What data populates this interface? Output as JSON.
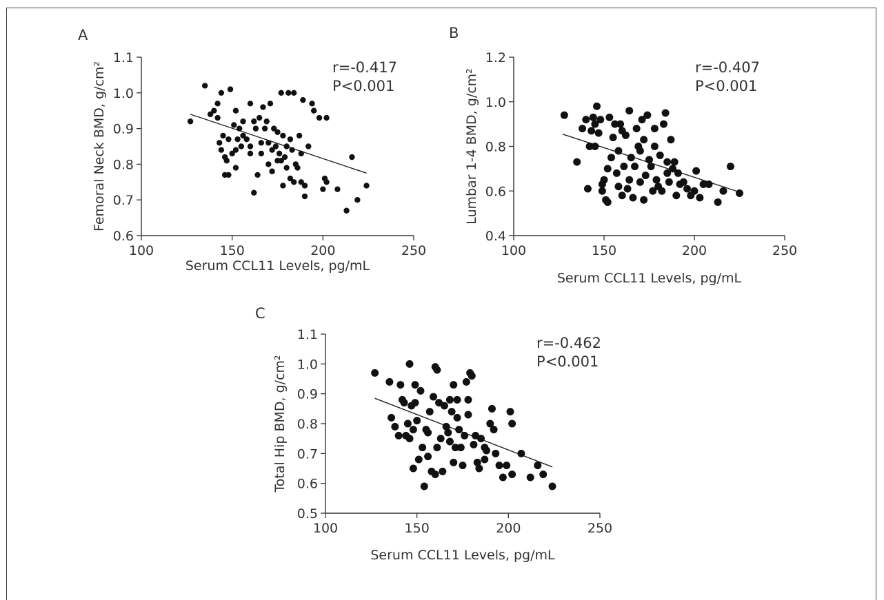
{
  "chart_data": [
    {
      "type": "scatter",
      "panel": "A",
      "annotation": [
        "r=-0.417",
        "P<0.001"
      ],
      "xlabel": "Serum CCL11 Levels, pg/mL",
      "ylabel": "Femoral Neck BMD, g/cm²",
      "xlim": [
        100,
        250
      ],
      "ylim": [
        0.6,
        1.1
      ],
      "xticks": [
        "100",
        "150",
        "200",
        "250"
      ],
      "yticks": [
        "0.6",
        "0.7",
        "0.8",
        "0.9",
        "1.0",
        "1.1"
      ],
      "grid": false,
      "regression": {
        "x": [
          127,
          224
        ],
        "y": [
          0.94,
          0.775
        ]
      },
      "points": [
        [
          127,
          0.92
        ],
        [
          135,
          1.02
        ],
        [
          138,
          0.94
        ],
        [
          140,
          0.95
        ],
        [
          142,
          0.97
        ],
        [
          144,
          1.0
        ],
        [
          142,
          0.93
        ],
        [
          144,
          0.84
        ],
        [
          145,
          0.88
        ],
        [
          146,
          0.82
        ],
        [
          146,
          0.77
        ],
        [
          147,
          0.81
        ],
        [
          148,
          0.77
        ],
        [
          148,
          0.87
        ],
        [
          149,
          1.01
        ],
        [
          150,
          0.83
        ],
        [
          151,
          0.91
        ],
        [
          152,
          0.95
        ],
        [
          152,
          0.79
        ],
        [
          153,
          0.87
        ],
        [
          154,
          0.9
        ],
        [
          155,
          0.85
        ],
        [
          156,
          0.92
        ],
        [
          158,
          0.87
        ],
        [
          160,
          0.85
        ],
        [
          160,
          0.83
        ],
        [
          160,
          0.97
        ],
        [
          162,
          0.92
        ],
        [
          162,
          0.72
        ],
        [
          163,
          0.9
        ],
        [
          164,
          0.77
        ],
        [
          165,
          0.93
        ],
        [
          166,
          0.83
        ],
        [
          167,
          0.96
        ],
        [
          168,
          0.9
        ],
        [
          169,
          0.92
        ],
        [
          170,
          0.86
        ],
        [
          171,
          0.97
        ],
        [
          172,
          0.84
        ],
        [
          172,
          0.78
        ],
        [
          173,
          0.9
        ],
        [
          174,
          0.85
        ],
        [
          175,
          0.89
        ],
        [
          176,
          0.83
        ],
        [
          177,
          1.0
        ],
        [
          177,
          0.81
        ],
        [
          178,
          0.88
        ],
        [
          178,
          0.74
        ],
        [
          179,
          0.82
        ],
        [
          180,
          0.85
        ],
        [
          180,
          0.79
        ],
        [
          181,
          1.0
        ],
        [
          182,
          0.76
        ],
        [
          183,
          0.84
        ],
        [
          184,
          1.0
        ],
        [
          184,
          0.75
        ],
        [
          185,
          0.8
        ],
        [
          186,
          0.79
        ],
        [
          187,
          0.88
        ],
        [
          188,
          0.75
        ],
        [
          189,
          0.98
        ],
        [
          190,
          0.74
        ],
        [
          190,
          0.71
        ],
        [
          192,
          0.85
        ],
        [
          194,
          0.97
        ],
        [
          195,
          0.95
        ],
        [
          198,
          0.93
        ],
        [
          200,
          0.73
        ],
        [
          201,
          0.76
        ],
        [
          202,
          0.75
        ],
        [
          202,
          0.93
        ],
        [
          208,
          0.73
        ],
        [
          213,
          0.67
        ],
        [
          216,
          0.82
        ],
        [
          219,
          0.7
        ],
        [
          224,
          0.74
        ],
        [
          156,
          0.88
        ],
        [
          166,
          0.86
        ],
        [
          175,
          0.81
        ],
        [
          188,
          0.83
        ],
        [
          143,
          0.86
        ],
        [
          152,
          0.84
        ],
        [
          170,
          0.8
        ],
        [
          182,
          0.87
        ]
      ]
    },
    {
      "type": "scatter",
      "panel": "B",
      "annotation": [
        "r=-0.407",
        "P<0.001"
      ],
      "xlabel": "Serum CCL11 Levels, pg/mL",
      "ylabel": "Lumbar 1-4 BMD, g/cm²",
      "xlim": [
        100,
        250
      ],
      "ylim": [
        0.4,
        1.2
      ],
      "xticks": [
        "100",
        "150",
        "200",
        "250"
      ],
      "yticks": [
        "0.4",
        "0.6",
        "0.8",
        "1.0",
        "1.2"
      ],
      "grid": false,
      "regression": {
        "x": [
          127,
          225
        ],
        "y": [
          0.855,
          0.595
        ]
      },
      "points": [
        [
          128,
          0.94
        ],
        [
          135,
          0.73
        ],
        [
          138,
          0.88
        ],
        [
          140,
          0.92
        ],
        [
          141,
          0.61
        ],
        [
          142,
          0.8
        ],
        [
          143,
          0.87
        ],
        [
          144,
          0.93
        ],
        [
          145,
          0.8
        ],
        [
          146,
          0.98
        ],
        [
          147,
          0.86
        ],
        [
          148,
          0.92
        ],
        [
          149,
          0.63
        ],
        [
          149,
          0.6
        ],
        [
          150,
          0.65
        ],
        [
          151,
          0.56
        ],
        [
          152,
          0.55
        ],
        [
          153,
          0.93
        ],
        [
          154,
          0.75
        ],
        [
          155,
          0.84
        ],
        [
          156,
          0.9
        ],
        [
          157,
          0.68
        ],
        [
          158,
          0.62
        ],
        [
          159,
          0.9
        ],
        [
          160,
          0.58
        ],
        [
          161,
          0.71
        ],
        [
          162,
          0.85
        ],
        [
          163,
          0.61
        ],
        [
          164,
          0.96
        ],
        [
          165,
          0.75
        ],
        [
          166,
          0.57
        ],
        [
          167,
          0.71
        ],
        [
          168,
          0.88
        ],
        [
          169,
          0.8
        ],
        [
          170,
          0.64
        ],
        [
          171,
          0.92
        ],
        [
          172,
          0.56
        ],
        [
          172,
          0.83
        ],
        [
          173,
          0.67
        ],
        [
          174,
          0.94
        ],
        [
          175,
          0.74
        ],
        [
          176,
          0.71
        ],
        [
          177,
          0.6
        ],
        [
          178,
          0.88
        ],
        [
          179,
          0.65
        ],
        [
          180,
          0.62
        ],
        [
          181,
          0.76
        ],
        [
          182,
          0.6
        ],
        [
          183,
          0.9
        ],
        [
          184,
          0.95
        ],
        [
          185,
          0.73
        ],
        [
          186,
          0.64
        ],
        [
          187,
          0.83
        ],
        [
          188,
          0.7
        ],
        [
          189,
          0.73
        ],
        [
          190,
          0.58
        ],
        [
          191,
          0.68
        ],
        [
          192,
          0.63
        ],
        [
          194,
          0.64
        ],
        [
          196,
          0.61
        ],
        [
          198,
          0.58
        ],
        [
          200,
          0.6
        ],
        [
          201,
          0.69
        ],
        [
          203,
          0.57
        ],
        [
          205,
          0.63
        ],
        [
          208,
          0.63
        ],
        [
          213,
          0.55
        ],
        [
          216,
          0.6
        ],
        [
          220,
          0.71
        ],
        [
          225,
          0.59
        ],
        [
          145,
          0.9
        ],
        [
          160,
          0.87
        ],
        [
          170,
          0.78
        ],
        [
          178,
          0.8
        ],
        [
          152,
          0.7
        ],
        [
          164,
          0.65
        ],
        [
          158,
          0.78
        ],
        [
          185,
          0.68
        ]
      ]
    },
    {
      "type": "scatter",
      "panel": "C",
      "annotation": [
        "r=-0.462",
        "P<0.001"
      ],
      "xlabel": "Serum CCL11 Levels, pg/mL",
      "ylabel": "Total Hip BMD, g/cm²",
      "xlim": [
        100,
        250
      ],
      "ylim": [
        0.5,
        1.1
      ],
      "xticks": [
        "100",
        "150",
        "200",
        "250"
      ],
      "yticks": [
        "0.5",
        "0.6",
        "0.7",
        "0.8",
        "0.9",
        "1.0",
        "1.1"
      ],
      "grid": false,
      "regression": {
        "x": [
          127,
          224
        ],
        "y": [
          0.885,
          0.655
        ]
      },
      "points": [
        [
          127,
          0.97
        ],
        [
          135,
          0.94
        ],
        [
          136,
          0.82
        ],
        [
          138,
          0.79
        ],
        [
          140,
          0.76
        ],
        [
          141,
          0.93
        ],
        [
          142,
          0.88
        ],
        [
          143,
          0.87
        ],
        [
          144,
          0.76
        ],
        [
          145,
          0.8
        ],
        [
          146,
          0.75
        ],
        [
          146,
          1.0
        ],
        [
          147,
          0.86
        ],
        [
          148,
          0.78
        ],
        [
          148,
          0.65
        ],
        [
          149,
          0.87
        ],
        [
          150,
          0.81
        ],
        [
          151,
          0.68
        ],
        [
          152,
          0.91
        ],
        [
          153,
          0.72
        ],
        [
          154,
          0.59
        ],
        [
          155,
          0.78
        ],
        [
          156,
          0.69
        ],
        [
          157,
          0.84
        ],
        [
          158,
          0.64
        ],
        [
          159,
          0.89
        ],
        [
          160,
          0.99
        ],
        [
          160,
          0.63
        ],
        [
          161,
          0.98
        ],
        [
          161,
          0.72
        ],
        [
          162,
          0.87
        ],
        [
          163,
          0.75
        ],
        [
          164,
          0.64
        ],
        [
          165,
          0.86
        ],
        [
          166,
          0.79
        ],
        [
          167,
          0.77
        ],
        [
          168,
          0.74
        ],
        [
          168,
          0.88
        ],
        [
          169,
          0.84
        ],
        [
          170,
          0.93
        ],
        [
          170,
          0.67
        ],
        [
          171,
          0.72
        ],
        [
          172,
          0.88
        ],
        [
          172,
          0.82
        ],
        [
          173,
          0.78
        ],
        [
          174,
          0.72
        ],
        [
          175,
          0.66
        ],
        [
          176,
          0.76
        ],
        [
          177,
          0.94
        ],
        [
          178,
          0.88
        ],
        [
          179,
          0.97
        ],
        [
          180,
          0.96
        ],
        [
          181,
          0.73
        ],
        [
          182,
          0.76
        ],
        [
          183,
          0.67
        ],
        [
          184,
          0.65
        ],
        [
          185,
          0.75
        ],
        [
          187,
          0.72
        ],
        [
          188,
          0.71
        ],
        [
          190,
          0.8
        ],
        [
          191,
          0.85
        ],
        [
          192,
          0.78
        ],
        [
          193,
          0.7
        ],
        [
          195,
          0.66
        ],
        [
          197,
          0.62
        ],
        [
          199,
          0.66
        ],
        [
          201,
          0.84
        ],
        [
          202,
          0.8
        ],
        [
          202,
          0.63
        ],
        [
          207,
          0.7
        ],
        [
          212,
          0.62
        ],
        [
          216,
          0.66
        ],
        [
          219,
          0.63
        ],
        [
          224,
          0.59
        ],
        [
          149,
          0.93
        ],
        [
          156,
          0.77
        ],
        [
          178,
          0.83
        ],
        [
          187,
          0.68
        ]
      ]
    }
  ]
}
